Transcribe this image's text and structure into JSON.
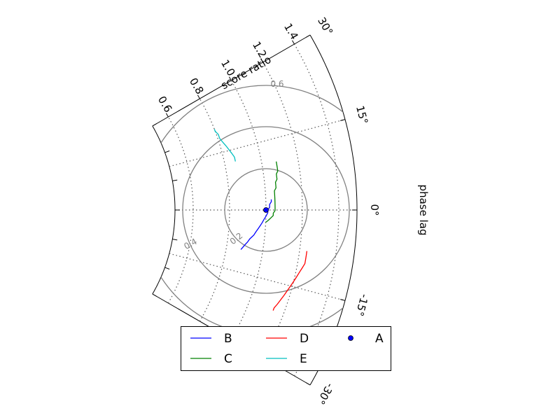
{
  "chart_data": {
    "type": "polar-sector",
    "radial_axis": {
      "title": "score ratio",
      "range": [
        0.5,
        1.5
      ],
      "ticks": [
        0.6,
        0.8,
        1.0,
        1.2,
        1.4
      ],
      "tick_labels": [
        "0.6",
        "0.8",
        "1.0",
        "1.2",
        "1.4"
      ]
    },
    "angular_axis": {
      "title": "phase lag",
      "range_deg": [
        -30,
        30
      ],
      "ticks": [
        -30,
        -15,
        0,
        15,
        30
      ],
      "tick_labels": [
        "-30°",
        "-15°",
        "0°",
        "15°",
        "30°"
      ]
    },
    "grid": true,
    "contours": {
      "levels": [
        0.2,
        0.4,
        0.6
      ],
      "labels": [
        "0.2",
        "0.4",
        "0.6"
      ],
      "color": "#808080"
    },
    "reference_point": {
      "name": "A",
      "ratio": 1.0,
      "angle_deg": 0,
      "color": "#0000ff"
    },
    "series": [
      {
        "name": "B",
        "color": "#0000ff",
        "points": [
          [
            0.88,
            -9.6
          ],
          [
            0.89,
            -8.9
          ],
          [
            0.9,
            -8.2
          ],
          [
            0.91,
            -7.6
          ],
          [
            0.92,
            -6.8
          ],
          [
            0.94,
            -5.8
          ],
          [
            0.95,
            -5.0
          ],
          [
            0.96,
            -4.3
          ],
          [
            0.97,
            -3.6
          ],
          [
            0.98,
            -2.9
          ],
          [
            0.99,
            -2.1
          ],
          [
            1.0,
            -1.4
          ],
          [
            1.01,
            -0.6
          ],
          [
            1.01,
            0.0
          ],
          [
            1.02,
            0.6
          ],
          [
            1.02,
            1.2
          ],
          [
            1.03,
            1.8
          ],
          [
            1.03,
            2.3
          ]
        ]
      },
      {
        "name": "C",
        "color": "#008000",
        "points": [
          [
            1.0,
            -2.7
          ],
          [
            1.01,
            -2.4
          ],
          [
            1.02,
            -2.0
          ],
          [
            1.03,
            -1.6
          ],
          [
            1.04,
            -1.2
          ],
          [
            1.04,
            -0.7
          ],
          [
            1.05,
            -0.1
          ],
          [
            1.05,
            0.5
          ],
          [
            1.05,
            1.0
          ],
          [
            1.05,
            1.6
          ],
          [
            1.05,
            2.2
          ],
          [
            1.05,
            2.8
          ],
          [
            1.05,
            3.4
          ],
          [
            1.05,
            4.1
          ],
          [
            1.06,
            4.7
          ],
          [
            1.06,
            5.3
          ],
          [
            1.06,
            5.9
          ],
          [
            1.07,
            6.5
          ],
          [
            1.07,
            7.0
          ],
          [
            1.07,
            7.6
          ],
          [
            1.08,
            8.2
          ],
          [
            1.08,
            9.0
          ],
          [
            1.08,
            9.7
          ],
          [
            1.08,
            10.2
          ]
        ]
      },
      {
        "name": "D",
        "color": "#ff0000",
        "points": [
          [
            1.24,
            -7.8
          ],
          [
            1.24,
            -8.6
          ],
          [
            1.24,
            -9.4
          ],
          [
            1.24,
            -10.2
          ],
          [
            1.23,
            -11.1
          ],
          [
            1.22,
            -12.0
          ],
          [
            1.21,
            -13.0
          ],
          [
            1.2,
            -14.0
          ],
          [
            1.19,
            -15.0
          ],
          [
            1.18,
            -16.0
          ],
          [
            1.17,
            -17.1
          ],
          [
            1.16,
            -18.1
          ],
          [
            1.15,
            -19.2
          ],
          [
            1.14,
            -20.1
          ],
          [
            1.14,
            -20.7
          ]
        ]
      },
      {
        "name": "E",
        "color": "#00bfbf",
        "points": [
          [
            0.86,
            12.0
          ],
          [
            0.86,
            13.1
          ],
          [
            0.85,
            14.2
          ],
          [
            0.84,
            15.3
          ],
          [
            0.83,
            16.4
          ],
          [
            0.82,
            17.4
          ],
          [
            0.81,
            18.6
          ],
          [
            0.81,
            19.7
          ],
          [
            0.8,
            20.7
          ],
          [
            0.8,
            21.3
          ]
        ]
      }
    ],
    "legend": {
      "placement": "bottom-center",
      "entries": [
        "B",
        "C",
        "D",
        "E",
        "A"
      ]
    }
  }
}
